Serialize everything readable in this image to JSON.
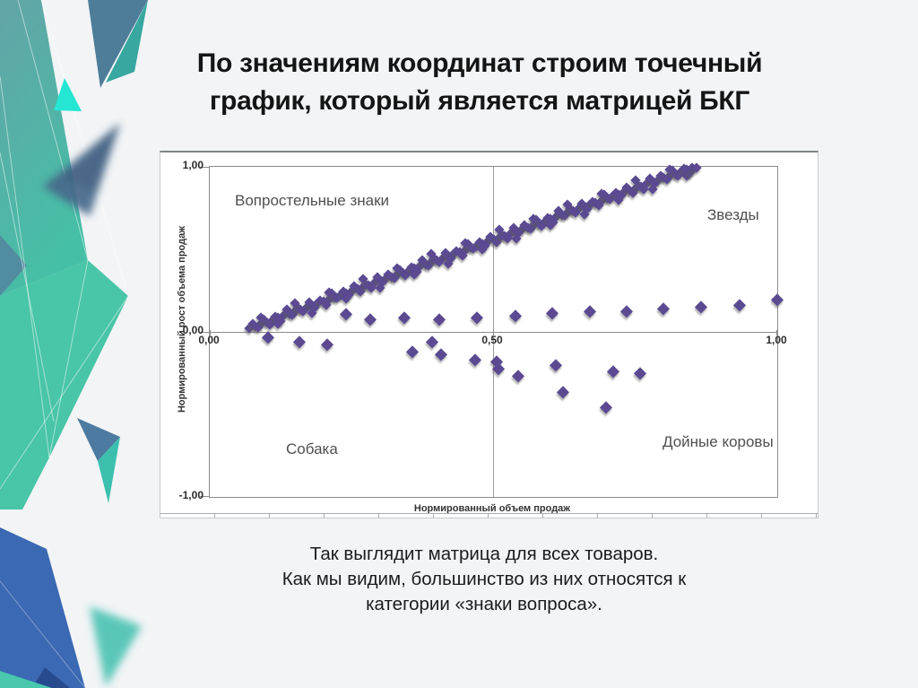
{
  "slide": {
    "title_lines": [
      "По значениям координат строим точечный",
      "график, который является матрицей БКГ"
    ],
    "caption_lines": [
      "Так выглядит матрица для всех товаров.",
      "Как мы видим, большинство из них относятся к",
      "категории «знаки вопроса»."
    ]
  },
  "colors": {
    "slide_background": "#f2f4f6",
    "chart_background": "#ffffff",
    "marker_purple": "#5b4a92",
    "axis_grey": "#8c8c8c",
    "quadrant_text": "#4f4f4f",
    "deco_teal": "#43c0a5",
    "deco_cyan": "#25e5d3",
    "deco_slate": "#4e7d99",
    "deco_blue": "#3b69b4"
  },
  "chart_data": {
    "type": "scatter",
    "title": "",
    "xlabel": "Нормированный объем продаж",
    "ylabel": "Нормированный рост объема продаж",
    "xlim": [
      0,
      1
    ],
    "ylim": [
      -1,
      1
    ],
    "grid": {
      "vertical_line_x": 0.5,
      "horizontal_axis_y": 0
    },
    "legend": "none",
    "marker": {
      "shape": "diamond",
      "color": "#5b4a92"
    },
    "x_ticks": [
      {
        "value": 0,
        "label": "0,00"
      },
      {
        "value": 0.5,
        "label": "0,50"
      },
      {
        "value": 1,
        "label": "1,00"
      }
    ],
    "y_ticks": [
      {
        "value": 1,
        "label": "1,00"
      },
      {
        "value": 0,
        "label": "0,00"
      },
      {
        "value": -1,
        "label": "-1,00"
      }
    ],
    "quadrants": {
      "top_left": "Вопростельные знаки",
      "top_right": "Звезды",
      "bottom_left": "Собака",
      "bottom_right": "Дойные коровы"
    },
    "series": [
      {
        "name": "main-trend",
        "points": [
          [
            0.07,
            0.023
          ],
          [
            0.08,
            0.035
          ],
          [
            0.09,
            0.048
          ],
          [
            0.1,
            0.06
          ],
          [
            0.11,
            0.073
          ],
          [
            0.12,
            0.085
          ],
          [
            0.13,
            0.098
          ],
          [
            0.14,
            0.11
          ],
          [
            0.15,
            0.123
          ],
          [
            0.16,
            0.135
          ],
          [
            0.17,
            0.148
          ],
          [
            0.18,
            0.16
          ],
          [
            0.19,
            0.173
          ],
          [
            0.2,
            0.185
          ],
          [
            0.21,
            0.198
          ],
          [
            0.22,
            0.21
          ],
          [
            0.23,
            0.223
          ],
          [
            0.24,
            0.235
          ],
          [
            0.25,
            0.248
          ],
          [
            0.26,
            0.26
          ],
          [
            0.27,
            0.273
          ],
          [
            0.28,
            0.285
          ],
          [
            0.29,
            0.298
          ],
          [
            0.3,
            0.31
          ],
          [
            0.31,
            0.323
          ],
          [
            0.32,
            0.335
          ],
          [
            0.33,
            0.348
          ],
          [
            0.34,
            0.36
          ],
          [
            0.35,
            0.373
          ],
          [
            0.36,
            0.385
          ],
          [
            0.37,
            0.398
          ],
          [
            0.38,
            0.41
          ],
          [
            0.39,
            0.423
          ],
          [
            0.4,
            0.435
          ],
          [
            0.41,
            0.448
          ],
          [
            0.42,
            0.46
          ],
          [
            0.43,
            0.473
          ],
          [
            0.44,
            0.485
          ],
          [
            0.45,
            0.498
          ],
          [
            0.46,
            0.51
          ],
          [
            0.47,
            0.523
          ],
          [
            0.48,
            0.535
          ],
          [
            0.49,
            0.548
          ],
          [
            0.5,
            0.56
          ],
          [
            0.51,
            0.573
          ],
          [
            0.52,
            0.585
          ],
          [
            0.53,
            0.598
          ],
          [
            0.54,
            0.61
          ],
          [
            0.55,
            0.623
          ],
          [
            0.56,
            0.635
          ],
          [
            0.57,
            0.648
          ],
          [
            0.58,
            0.66
          ],
          [
            0.59,
            0.673
          ],
          [
            0.6,
            0.685
          ],
          [
            0.61,
            0.698
          ],
          [
            0.62,
            0.71
          ],
          [
            0.63,
            0.723
          ],
          [
            0.64,
            0.735
          ],
          [
            0.65,
            0.748
          ],
          [
            0.66,
            0.76
          ],
          [
            0.67,
            0.773
          ],
          [
            0.68,
            0.785
          ],
          [
            0.69,
            0.798
          ],
          [
            0.7,
            0.81
          ],
          [
            0.71,
            0.823
          ],
          [
            0.72,
            0.835
          ],
          [
            0.73,
            0.848
          ],
          [
            0.74,
            0.86
          ],
          [
            0.75,
            0.873
          ],
          [
            0.76,
            0.885
          ],
          [
            0.77,
            0.898
          ],
          [
            0.78,
            0.91
          ],
          [
            0.79,
            0.923
          ],
          [
            0.8,
            0.935
          ],
          [
            0.81,
            0.948
          ],
          [
            0.82,
            0.96
          ],
          [
            0.83,
            0.973
          ],
          [
            0.84,
            0.985
          ],
          [
            0.85,
            0.998
          ],
          [
            0.075,
            0.047
          ],
          [
            0.085,
            0.026
          ],
          [
            0.095,
            0.079
          ],
          [
            0.105,
            0.046
          ],
          [
            0.115,
            0.091
          ],
          [
            0.125,
            0.066
          ],
          [
            0.135,
            0.134
          ],
          [
            0.145,
            0.106
          ],
          [
            0.155,
            0.147
          ],
          [
            0.165,
            0.126
          ],
          [
            0.175,
            0.179
          ],
          [
            0.185,
            0.146
          ],
          [
            0.195,
            0.191
          ],
          [
            0.205,
            0.166
          ],
          [
            0.215,
            0.234
          ],
          [
            0.225,
            0.206
          ],
          [
            0.235,
            0.247
          ],
          [
            0.245,
            0.226
          ],
          [
            0.255,
            0.279
          ],
          [
            0.265,
            0.246
          ],
          [
            0.275,
            0.291
          ],
          [
            0.285,
            0.266
          ],
          [
            0.295,
            0.334
          ],
          [
            0.305,
            0.306
          ],
          [
            0.315,
            0.347
          ],
          [
            0.325,
            0.326
          ],
          [
            0.335,
            0.379
          ],
          [
            0.345,
            0.346
          ],
          [
            0.355,
            0.391
          ],
          [
            0.365,
            0.366
          ],
          [
            0.375,
            0.434
          ],
          [
            0.385,
            0.406
          ],
          [
            0.395,
            0.447
          ],
          [
            0.405,
            0.426
          ],
          [
            0.415,
            0.479
          ],
          [
            0.425,
            0.446
          ],
          [
            0.435,
            0.491
          ],
          [
            0.445,
            0.466
          ],
          [
            0.455,
            0.534
          ],
          [
            0.465,
            0.506
          ],
          [
            0.475,
            0.547
          ],
          [
            0.485,
            0.526
          ],
          [
            0.495,
            0.579
          ],
          [
            0.505,
            0.546
          ],
          [
            0.515,
            0.591
          ],
          [
            0.525,
            0.566
          ],
          [
            0.535,
            0.634
          ],
          [
            0.545,
            0.606
          ],
          [
            0.555,
            0.647
          ],
          [
            0.565,
            0.626
          ],
          [
            0.575,
            0.679
          ],
          [
            0.585,
            0.646
          ],
          [
            0.595,
            0.691
          ],
          [
            0.605,
            0.666
          ],
          [
            0.615,
            0.734
          ],
          [
            0.625,
            0.706
          ],
          [
            0.635,
            0.747
          ],
          [
            0.645,
            0.726
          ],
          [
            0.655,
            0.779
          ],
          [
            0.665,
            0.746
          ],
          [
            0.675,
            0.791
          ],
          [
            0.685,
            0.766
          ],
          [
            0.695,
            0.834
          ],
          [
            0.705,
            0.806
          ],
          [
            0.715,
            0.847
          ],
          [
            0.725,
            0.826
          ],
          [
            0.735,
            0.879
          ],
          [
            0.745,
            0.846
          ],
          [
            0.755,
            0.891
          ],
          [
            0.765,
            0.866
          ],
          [
            0.775,
            0.934
          ],
          [
            0.785,
            0.906
          ],
          [
            0.795,
            0.947
          ],
          [
            0.805,
            0.926
          ],
          [
            0.815,
            0.979
          ],
          [
            0.825,
            0.946
          ],
          [
            0.835,
            0.991
          ],
          [
            0.845,
            0.966
          ],
          [
            0.09,
            0.088
          ],
          [
            0.12,
            0.05
          ],
          [
            0.15,
            0.173
          ],
          [
            0.18,
            0.115
          ],
          [
            0.21,
            0.238
          ],
          [
            0.24,
            0.2
          ],
          [
            0.27,
            0.323
          ],
          [
            0.3,
            0.265
          ],
          [
            0.33,
            0.388
          ],
          [
            0.36,
            0.35
          ],
          [
            0.39,
            0.473
          ],
          [
            0.42,
            0.415
          ],
          [
            0.45,
            0.538
          ],
          [
            0.48,
            0.5
          ],
          [
            0.51,
            0.623
          ],
          [
            0.54,
            0.565
          ],
          [
            0.57,
            0.688
          ],
          [
            0.6,
            0.65
          ],
          [
            0.63,
            0.773
          ],
          [
            0.66,
            0.715
          ],
          [
            0.69,
            0.838
          ],
          [
            0.72,
            0.8
          ],
          [
            0.75,
            0.923
          ],
          [
            0.78,
            0.865
          ],
          [
            0.81,
            0.988
          ],
          [
            0.84,
            0.95
          ],
          [
            0.846,
            0.972
          ],
          [
            0.852,
            0.99
          ],
          [
            0.858,
            1.0
          ]
        ]
      },
      {
        "name": "secondary-low-growth",
        "points": [
          [
            0.24,
            0.11
          ],
          [
            0.283,
            0.077
          ],
          [
            0.343,
            0.087
          ],
          [
            0.405,
            0.077
          ],
          [
            0.47,
            0.09
          ],
          [
            0.538,
            0.098
          ],
          [
            0.604,
            0.112
          ],
          [
            0.669,
            0.126
          ],
          [
            0.735,
            0.128
          ],
          [
            0.8,
            0.14
          ],
          [
            0.866,
            0.152
          ],
          [
            0.934,
            0.165
          ],
          [
            1.0,
            0.196
          ]
        ]
      },
      {
        "name": "negative-growth",
        "points": [
          [
            0.103,
            -0.035
          ],
          [
            0.158,
            -0.062
          ],
          [
            0.207,
            -0.075
          ],
          [
            0.357,
            -0.118
          ],
          [
            0.391,
            -0.06
          ],
          [
            0.408,
            -0.138
          ],
          [
            0.467,
            -0.17
          ],
          [
            0.505,
            -0.18
          ],
          [
            0.508,
            -0.222
          ],
          [
            0.543,
            -0.268
          ],
          [
            0.609,
            -0.202
          ],
          [
            0.622,
            -0.366
          ],
          [
            0.698,
            -0.459
          ],
          [
            0.711,
            -0.24
          ],
          [
            0.759,
            -0.251
          ]
        ]
      }
    ]
  }
}
